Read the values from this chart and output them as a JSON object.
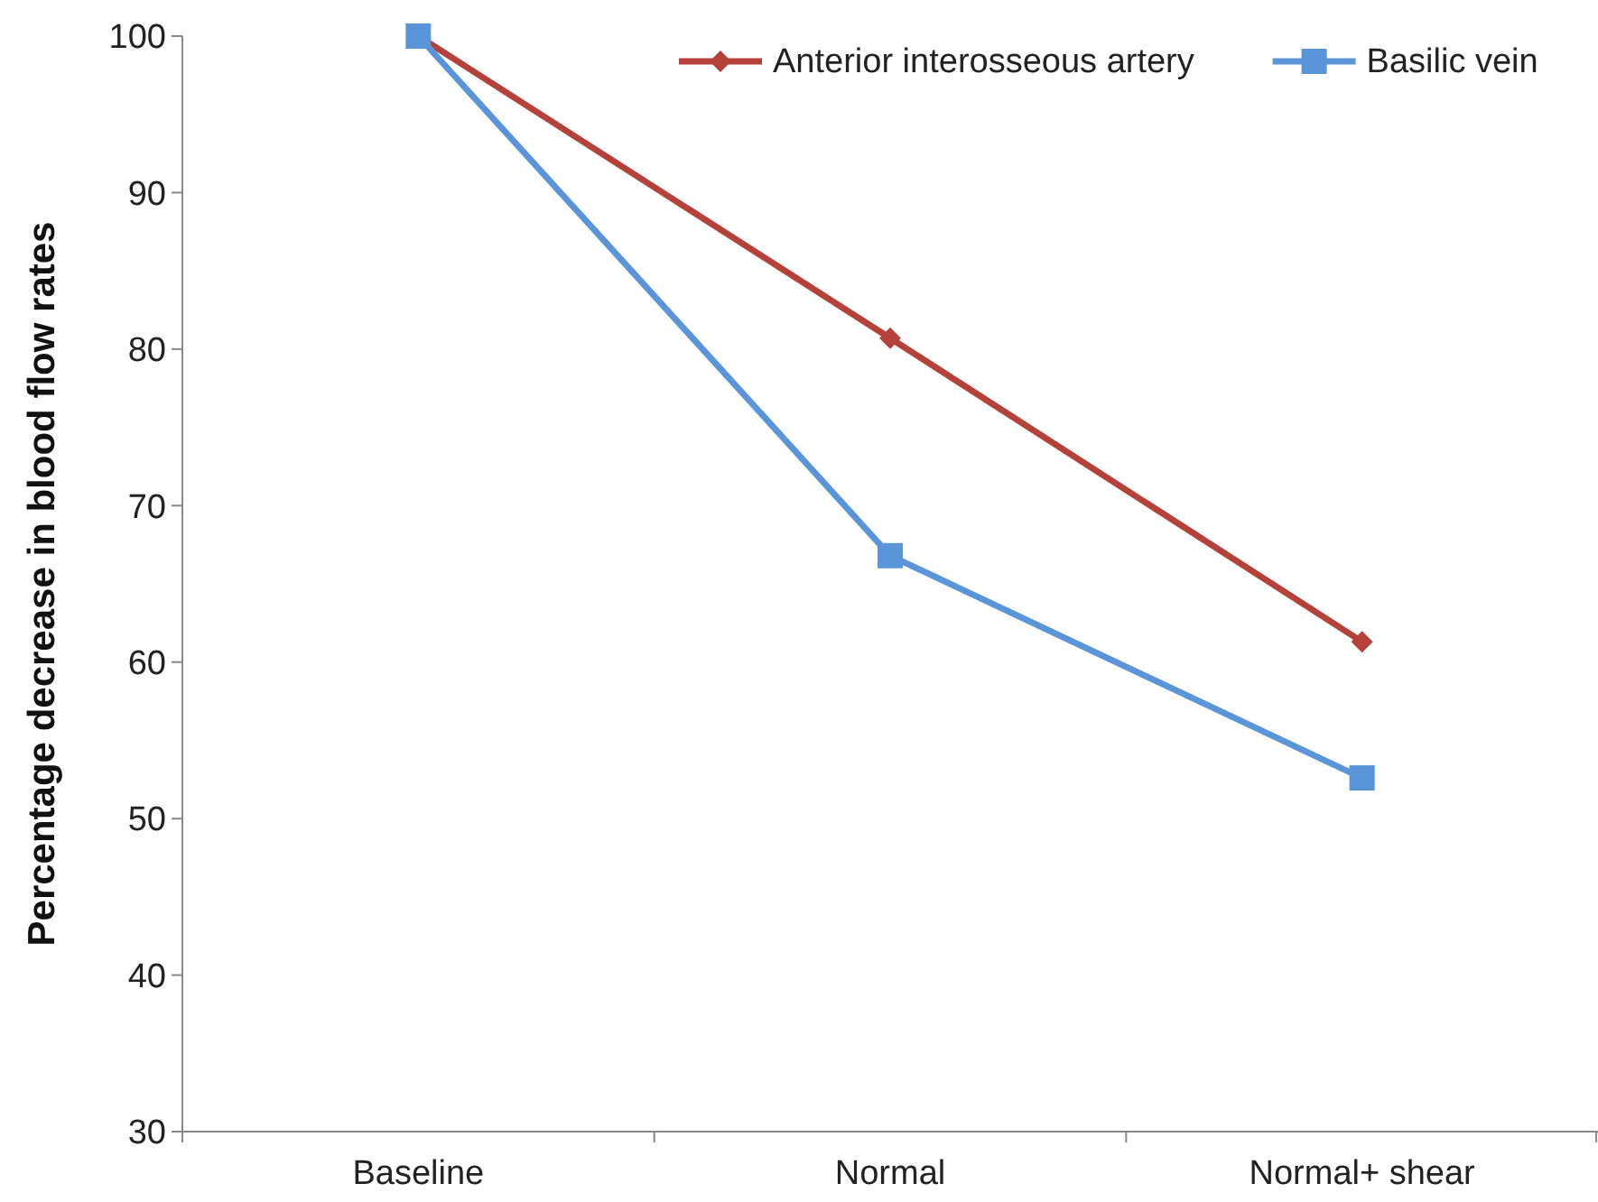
{
  "chart_data": {
    "type": "line",
    "ylabel": "Percentage decrease in blood flow rates",
    "categories": [
      "Baseline",
      "Normal",
      "Normal+ shear"
    ],
    "series": [
      {
        "name": "Anterior interosseous artery",
        "color": "#b5413b",
        "marker": "diamond",
        "values": [
          100,
          80.7,
          61.3
        ]
      },
      {
        "name": "Basilic vein",
        "color": "#5b95d9",
        "marker": "square",
        "values": [
          100,
          66.8,
          52.6
        ]
      }
    ],
    "ylim": [
      30,
      100
    ],
    "yticks": [
      30,
      40,
      50,
      60,
      70,
      80,
      90,
      100
    ],
    "grid": false,
    "legend": "top right",
    "line_style": "solid"
  }
}
